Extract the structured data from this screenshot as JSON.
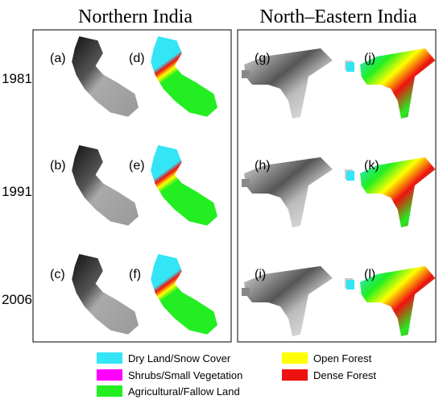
{
  "titles": [
    "Northern India",
    "North–Eastern India"
  ],
  "years": [
    "1981",
    "1991",
    "2006"
  ],
  "panels": [
    "(a)",
    "(b)",
    "(c)",
    "(d)",
    "(e)",
    "(f)",
    "(g)",
    "(h)",
    "(i)",
    "(j)",
    "(k)",
    "(l)"
  ],
  "legend": [
    {
      "label": "Dry Land/Snow Cover",
      "color": "#33e5f5"
    },
    {
      "label": "Shrubs/Small Vegetation",
      "color": "#ff00ff"
    },
    {
      "label": "Agricultural/Fallow Land",
      "color": "#22ee22"
    },
    {
      "label": "Open Forest",
      "color": "#ffff00"
    },
    {
      "label": "Dense Forest",
      "color": "#ee1111"
    }
  ]
}
